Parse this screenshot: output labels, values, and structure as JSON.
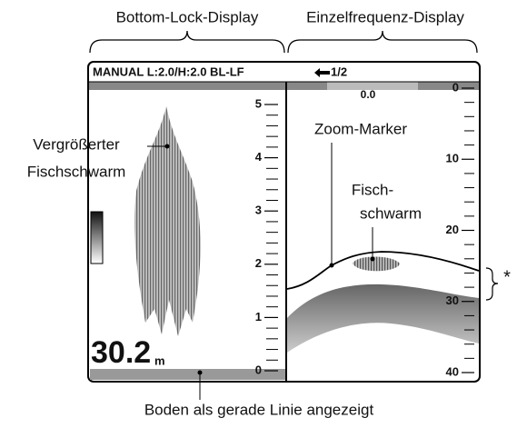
{
  "headings": {
    "left": "Bottom-Lock-Display",
    "right": "Einzelfrequenz-Display"
  },
  "status": {
    "mode": "MANUAL L:2.0/H:2.0 BL-LF",
    "page": "1/2",
    "offset": "0.0"
  },
  "left_scale": [
    "5",
    "4",
    "3",
    "2",
    "1",
    "0"
  ],
  "right_scale": [
    "0",
    "10",
    "20",
    "30",
    "40"
  ],
  "depth": {
    "value": "30.2",
    "unit": "m"
  },
  "annotations": {
    "enlarged": [
      "Vergrößerter",
      "Fischschwarm"
    ],
    "zoom": "Zoom-Marker",
    "fish": [
      "Fisch-",
      "schwarm"
    ],
    "star": "*",
    "bottom": "Boden als gerade Linie angezeigt"
  }
}
